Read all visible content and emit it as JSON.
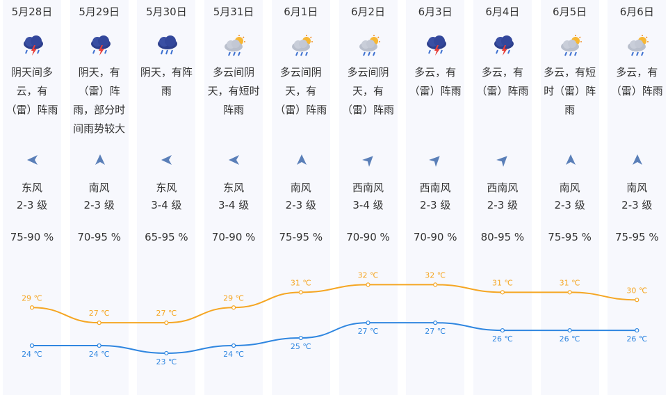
{
  "days": [
    {
      "date": "5月28日",
      "icon": "thunderstorm-icon",
      "desc": "阴天间多云，有（雷）阵雨",
      "wind_dir": "东风",
      "wind_level": "2-3 级",
      "humidity": "75-90 %",
      "high": "29 ℃",
      "low": "24 ℃",
      "wind_icon": "arrow-west-icon"
    },
    {
      "date": "5月29日",
      "icon": "thunderstorm-icon",
      "desc": "阴天，有（雷）阵雨，部分时间雨势较大",
      "wind_dir": "南风",
      "wind_level": "2-3 级",
      "humidity": "70-95 %",
      "high": "27 ℃",
      "low": "24 ℃",
      "wind_icon": "arrow-north-icon"
    },
    {
      "date": "5月30日",
      "icon": "rain-icon",
      "desc": "阴天，有阵雨",
      "wind_dir": "东风",
      "wind_level": "3-4 级",
      "humidity": "65-95 %",
      "high": "27 ℃",
      "low": "23 ℃",
      "wind_icon": "arrow-west-icon"
    },
    {
      "date": "5月31日",
      "icon": "sun-cloud-rain-icon",
      "desc": "多云间阴天，有短时阵雨",
      "wind_dir": "东风",
      "wind_level": "3-4 级",
      "humidity": "70-90 %",
      "high": "29 ℃",
      "low": "24 ℃",
      "wind_icon": "arrow-west-icon"
    },
    {
      "date": "6月1日",
      "icon": "sun-cloud-rain-icon",
      "desc": "多云间阴天，有（雷）阵雨",
      "wind_dir": "南风",
      "wind_level": "2-3 级",
      "humidity": "75-95 %",
      "high": "31 ℃",
      "low": "25 ℃",
      "wind_icon": "arrow-north-icon"
    },
    {
      "date": "6月2日",
      "icon": "sun-cloud-rain-icon",
      "desc": "多云间阴天，有（雷）阵雨",
      "wind_dir": "西南风",
      "wind_level": "3-4 级",
      "humidity": "70-90 %",
      "high": "32 ℃",
      "low": "27 ℃",
      "wind_icon": "arrow-northeast-icon"
    },
    {
      "date": "6月3日",
      "icon": "thunderstorm-icon",
      "desc": "多云，有（雷）阵雨",
      "wind_dir": "西南风",
      "wind_level": "2-3 级",
      "humidity": "70-90 %",
      "high": "32 ℃",
      "low": "27 ℃",
      "wind_icon": "arrow-northeast-icon"
    },
    {
      "date": "6月4日",
      "icon": "thunderstorm-icon",
      "desc": "多云，有（雷）阵雨",
      "wind_dir": "西南风",
      "wind_level": "2-3 级",
      "humidity": "80-95 %",
      "high": "31 ℃",
      "low": "26 ℃",
      "wind_icon": "arrow-northeast-icon"
    },
    {
      "date": "6月5日",
      "icon": "sun-cloud-rain-icon",
      "desc": "多云，有短时（雷）阵雨",
      "wind_dir": "南风",
      "wind_level": "2-3 级",
      "humidity": "75-95 %",
      "high": "31 ℃",
      "low": "26 ℃",
      "wind_icon": "arrow-north-icon"
    },
    {
      "date": "6月6日",
      "icon": "sun-cloud-rain-icon",
      "desc": "多云，有（雷）阵雨",
      "wind_dir": "南风",
      "wind_level": "2-3 级",
      "humidity": "75-95 %",
      "high": "30 ℃",
      "low": "26 ℃",
      "wind_icon": "arrow-north-icon"
    }
  ],
  "chart_data": {
    "type": "line",
    "x": [
      "5月28日",
      "5月29日",
      "5月30日",
      "5月31日",
      "6月1日",
      "6月2日",
      "6月3日",
      "6月4日",
      "6月5日",
      "6月6日"
    ],
    "series": [
      {
        "values": [
          29,
          27,
          27,
          29,
          31,
          32,
          32,
          31,
          31,
          30
        ],
        "color": "#f5a623"
      },
      {
        "values": [
          24,
          24,
          23,
          24,
          25,
          27,
          27,
          26,
          26,
          26
        ],
        "color": "#2f86e0"
      }
    ],
    "ylim": [
      20,
      34
    ]
  },
  "colors": {
    "high": "#f5a623",
    "low": "#2f86e0",
    "column_bg": "#f7f8fd"
  }
}
